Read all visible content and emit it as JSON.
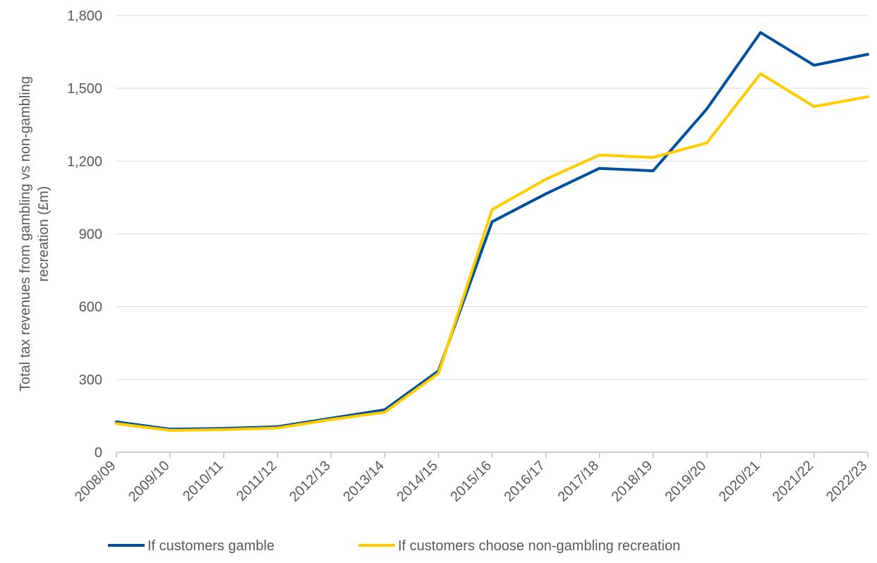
{
  "chart_data": {
    "type": "line",
    "title": "",
    "xlabel": "",
    "ylabel": "Total tax revenues from gambling vs non-gambling recreation (£m)",
    "ylabel_lines": [
      "Total tax revenues from gambling vs non-gambling",
      "recreation (£m)"
    ],
    "ylim": [
      0,
      1800
    ],
    "yticks": [
      0,
      300,
      600,
      900,
      1200,
      1500,
      1800
    ],
    "ytick_labels": [
      "0",
      "300",
      "600",
      "900",
      "1,200",
      "1,500",
      "1,800"
    ],
    "grid": true,
    "legend_position": "bottom",
    "categories": [
      "2008/09",
      "2009/10",
      "2010/11",
      "2011/12",
      "2012/13",
      "2013/14",
      "2014/15",
      "2015/16",
      "2016/17",
      "2017/18",
      "2018/19",
      "2019/20",
      "2020/21",
      "2021/22",
      "2022/23"
    ],
    "series": [
      {
        "name": "If customers gamble",
        "color": "#0050A0",
        "values": [
          125,
          95,
          98,
          105,
          140,
          175,
          335,
          950,
          1065,
          1170,
          1160,
          1415,
          1730,
          1595,
          1640
        ]
      },
      {
        "name": "If customers choose non-gambling recreation",
        "color": "#FFCC00",
        "values": [
          118,
          90,
          93,
          100,
          135,
          165,
          325,
          1000,
          1125,
          1225,
          1215,
          1275,
          1560,
          1425,
          1465
        ]
      }
    ]
  }
}
